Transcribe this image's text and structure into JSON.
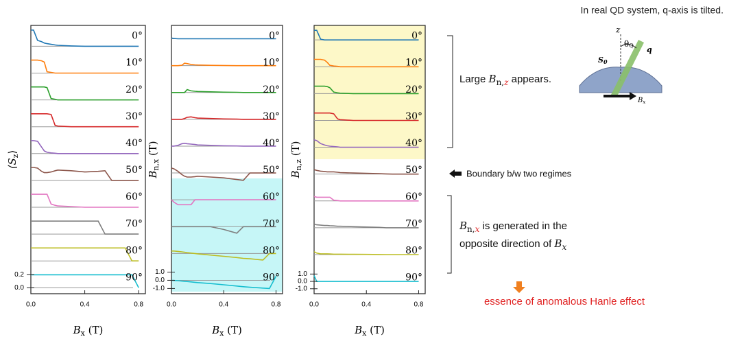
{
  "chart_data": [
    {
      "type": "line",
      "ylabel": [
        "⟨S",
        "z",
        "⟩"
      ],
      "xlabel": [
        "B",
        "x",
        " (T)"
      ],
      "x": [
        0,
        0.02,
        0.05,
        0.08,
        0.1,
        0.12,
        0.15,
        0.18,
        0.2,
        0.3,
        0.4,
        0.5,
        0.55,
        0.6,
        0.7,
        0.75,
        0.8
      ],
      "xlim": [
        0,
        0.85
      ],
      "xticks": [
        {
          "value": 0,
          "label": "0.0"
        },
        0.4,
        0.8
      ],
      "ylim": [
        -0.05,
        0.28
      ],
      "yticks": [
        {
          "value": 0,
          "label": "0.0"
        },
        0.2
      ],
      "series": [
        {
          "name": "0°",
          "color": "#1f77b4",
          "values": [
            0.25,
            0.25,
            0.09,
            0.07,
            0.05,
            0.04,
            0.03,
            0.02,
            0.015,
            0.005,
            0,
            0,
            0,
            0,
            0,
            0,
            0
          ]
        },
        {
          "name": "10°",
          "color": "#ff7f0e",
          "values": [
            0.2,
            0.2,
            0.2,
            0.19,
            0.17,
            0.02,
            0.01,
            0,
            0,
            0,
            0,
            0,
            0,
            0,
            0,
            0,
            0
          ]
        },
        {
          "name": "20°",
          "color": "#2ca02c",
          "values": [
            0.2,
            0.2,
            0.2,
            0.2,
            0.2,
            0.19,
            0.02,
            0.01,
            0,
            0,
            0,
            0,
            0,
            0,
            0,
            0,
            0
          ]
        },
        {
          "name": "30°",
          "color": "#d62728",
          "values": [
            0.2,
            0.2,
            0.2,
            0.2,
            0.2,
            0.2,
            0.19,
            0.02,
            0.01,
            0,
            0,
            0,
            0,
            0,
            0,
            0,
            0
          ]
        },
        {
          "name": "40°",
          "color": "#9467bd",
          "values": [
            0.2,
            0.2,
            0.19,
            0.1,
            0.04,
            0.02,
            0.01,
            0.005,
            0,
            0,
            0,
            0,
            0,
            0,
            0,
            0,
            0
          ]
        },
        {
          "name": "50°",
          "color": "#8c564b",
          "values": [
            0.2,
            0.2,
            0.19,
            0.14,
            0.12,
            0.12,
            0.13,
            0.15,
            0.16,
            0.15,
            0.13,
            0.14,
            0.15,
            0,
            0,
            0,
            0
          ]
        },
        {
          "name": "60°",
          "color": "#e377c2",
          "values": [
            0.2,
            0.2,
            0.2,
            0.2,
            0.2,
            0.2,
            0.05,
            0.03,
            0.02,
            0.01,
            0,
            0,
            0,
            0,
            0,
            0,
            0
          ]
        },
        {
          "name": "70°",
          "color": "#7f7f7f",
          "values": [
            0.2,
            0.2,
            0.2,
            0.2,
            0.2,
            0.2,
            0.2,
            0.2,
            0.2,
            0.2,
            0.2,
            0.2,
            0,
            0,
            0,
            0,
            0
          ]
        },
        {
          "name": "80°",
          "color": "#bcbd22",
          "values": [
            0.2,
            0.2,
            0.2,
            0.2,
            0.2,
            0.2,
            0.2,
            0.2,
            0.2,
            0.2,
            0.2,
            0.2,
            0.2,
            0.2,
            0.2,
            0,
            0
          ]
        },
        {
          "name": "90°",
          "color": "#17becf",
          "values": [
            0.2,
            0.2,
            0.2,
            0.2,
            0.2,
            0.2,
            0.2,
            0.2,
            0.2,
            0.2,
            0.2,
            0.2,
            0.2,
            0.2,
            0.2,
            0.2,
            0
          ]
        }
      ]
    },
    {
      "type": "line",
      "ylabel": [
        "B",
        "n,x",
        " (T)"
      ],
      "xlabel": [
        "B",
        "x",
        " (T)"
      ],
      "x": [
        0,
        0.02,
        0.05,
        0.08,
        0.1,
        0.12,
        0.15,
        0.18,
        0.2,
        0.3,
        0.4,
        0.5,
        0.55,
        0.6,
        0.7,
        0.75,
        0.8
      ],
      "xlim": [
        0,
        0.85
      ],
      "xticks": [
        {
          "value": 0,
          "label": "0.0"
        },
        0.4,
        0.8
      ],
      "ylim": [
        -1.3,
        1.3
      ],
      "yticks": [
        {
          "value": -1,
          "label": "-1.0"
        },
        {
          "value": 0,
          "label": "0.0"
        },
        {
          "value": 1,
          "label": "1.0"
        }
      ],
      "series": [
        {
          "name": "0°",
          "color": "#1f77b4",
          "values": [
            0.1,
            0.05,
            0,
            0,
            0,
            0,
            0,
            0,
            0,
            0,
            0,
            0,
            0,
            0,
            0,
            0,
            0
          ]
        },
        {
          "name": "10°",
          "color": "#ff7f0e",
          "values": [
            0,
            0,
            0,
            0.05,
            0.3,
            0.25,
            0.15,
            0.1,
            0.08,
            0.04,
            0.02,
            0,
            0,
            0,
            0,
            0,
            0
          ]
        },
        {
          "name": "20°",
          "color": "#2ca02c",
          "values": [
            0,
            0,
            0,
            0,
            0,
            0.35,
            0.2,
            0.15,
            0.12,
            0.08,
            0.04,
            0.02,
            0,
            0,
            0,
            0,
            0
          ]
        },
        {
          "name": "30°",
          "color": "#d62728",
          "values": [
            0,
            0,
            0,
            0,
            0.1,
            0.25,
            0.3,
            0.2,
            0.15,
            0.1,
            0.05,
            0.02,
            0,
            0,
            0,
            0,
            0
          ]
        },
        {
          "name": "40°",
          "color": "#9467bd",
          "values": [
            0,
            0,
            0.1,
            0.3,
            0.35,
            0.3,
            0.25,
            0.2,
            0.15,
            0.1,
            0.05,
            0.02,
            0,
            0,
            0,
            0,
            0
          ]
        },
        {
          "name": "50°",
          "color": "#8c564b",
          "values": [
            0.6,
            0.5,
            0.2,
            -0.2,
            -0.4,
            -0.5,
            -0.5,
            -0.45,
            -0.4,
            -0.5,
            -0.6,
            -0.8,
            -0.9,
            0,
            0,
            0,
            0
          ]
        },
        {
          "name": "60°",
          "color": "#e377c2",
          "values": [
            0,
            -0.3,
            -0.6,
            -0.6,
            -0.6,
            -0.6,
            -0.6,
            0,
            0,
            0,
            0,
            0,
            0,
            0,
            0,
            0,
            0
          ]
        },
        {
          "name": "70°",
          "color": "#7f7f7f",
          "values": [
            0,
            0,
            0,
            0,
            0,
            0,
            0,
            0,
            0,
            0,
            -0.35,
            -0.8,
            0,
            0,
            0,
            0,
            0
          ]
        },
        {
          "name": "80°",
          "color": "#bcbd22",
          "values": [
            0.3,
            0.3,
            0.25,
            0.2,
            0.15,
            0.1,
            0.05,
            0,
            -0.05,
            -0.2,
            -0.35,
            -0.5,
            -0.6,
            -0.65,
            -0.8,
            0,
            0
          ]
        },
        {
          "name": "90°",
          "color": "#17becf",
          "values": [
            0,
            -0.02,
            -0.05,
            -0.1,
            -0.12,
            -0.15,
            -0.2,
            -0.25,
            -0.28,
            -0.4,
            -0.55,
            -0.7,
            -0.78,
            -0.85,
            -0.95,
            -1.0,
            0.5
          ]
        }
      ]
    },
    {
      "type": "line",
      "ylabel": [
        "B",
        "n,z",
        " (T)"
      ],
      "xlabel": [
        "B",
        "x",
        " (T)"
      ],
      "x": [
        0,
        0.02,
        0.05,
        0.08,
        0.1,
        0.12,
        0.15,
        0.18,
        0.2,
        0.3,
        0.4,
        0.5,
        0.55,
        0.6,
        0.7,
        0.75,
        0.8
      ],
      "xlim": [
        0,
        0.85
      ],
      "xticks": [
        {
          "value": 0,
          "label": "0.0"
        },
        0.4,
        0.8
      ],
      "ylim": [
        -1.3,
        1.6
      ],
      "yticks": [
        {
          "value": -1,
          "label": "-1.0"
        },
        {
          "value": 0,
          "label": "0.0"
        },
        {
          "value": 1,
          "label": "1.0"
        }
      ],
      "series": [
        {
          "name": "0°",
          "color": "#1f77b4",
          "values": [
            1.3,
            1.3,
            0.1,
            0,
            0,
            0,
            0,
            0,
            0,
            0,
            0,
            0,
            0,
            0,
            0,
            0,
            0
          ]
        },
        {
          "name": "10°",
          "color": "#ff7f0e",
          "values": [
            1.0,
            1.0,
            1.0,
            0.9,
            0.6,
            0.2,
            0.1,
            0.05,
            0,
            0,
            0,
            0,
            0,
            0,
            0,
            0,
            0
          ]
        },
        {
          "name": "20°",
          "color": "#2ca02c",
          "values": [
            1.0,
            1.0,
            1.0,
            1.0,
            0.95,
            0.8,
            0.2,
            0.1,
            0.05,
            0,
            0,
            0,
            0,
            0,
            0,
            0,
            0
          ]
        },
        {
          "name": "30°",
          "color": "#d62728",
          "values": [
            1.0,
            1.0,
            1.0,
            1.0,
            1.0,
            1.0,
            0.9,
            0.2,
            0.1,
            0,
            0,
            0,
            0,
            0,
            0,
            0,
            0
          ]
        },
        {
          "name": "40°",
          "color": "#9467bd",
          "values": [
            1.0,
            0.9,
            0.5,
            0.3,
            0.2,
            0.15,
            0.1,
            0.05,
            0,
            0,
            0,
            0,
            0,
            0,
            0,
            0,
            0
          ]
        },
        {
          "name": "50°",
          "color": "#8c564b",
          "values": [
            0.6,
            0.5,
            0.4,
            0.35,
            0.3,
            0.3,
            0.3,
            0.25,
            0.2,
            0.15,
            0.1,
            0.05,
            0.02,
            0,
            0,
            0,
            0
          ]
        },
        {
          "name": "60°",
          "color": "#e377c2",
          "values": [
            0.6,
            0.5,
            0.5,
            0.5,
            0.5,
            0.5,
            0.1,
            0.05,
            0,
            0,
            0,
            0,
            0,
            0,
            0,
            0,
            0
          ]
        },
        {
          "name": "70°",
          "color": "#7f7f7f",
          "values": [
            0.5,
            0.4,
            0.35,
            0.3,
            0.3,
            0.28,
            0.25,
            0.2,
            0.2,
            0.15,
            0.1,
            0.05,
            0,
            0,
            0,
            0,
            0
          ]
        },
        {
          "name": "80°",
          "color": "#bcbd22",
          "values": [
            0.4,
            0.2,
            0.1,
            0.1,
            0.1,
            0.08,
            0.05,
            0.05,
            0.05,
            0.03,
            0.02,
            0.01,
            0,
            0,
            0,
            0,
            0
          ]
        },
        {
          "name": "90°",
          "color": "#17becf",
          "values": [
            0.8,
            0,
            0,
            0,
            0,
            0,
            0,
            0,
            0,
            0,
            0,
            0,
            0,
            0,
            0,
            0,
            0
          ]
        }
      ]
    }
  ],
  "annotations": {
    "top_note": "In real QD system, q-axis is tilted.",
    "large": [
      "Large ",
      "B",
      "n,",
      "z",
      " appears."
    ],
    "boundary": "Boundary b/w two regimes",
    "generated": [
      "B",
      "n,",
      "x",
      " is generated in the",
      "opposite direction of ",
      "B",
      "x"
    ],
    "essence": "essence of anomalous Hanle effect",
    "diagram": {
      "z": "z",
      "theta": "θ",
      "theta_sub": "Q",
      "q": "q",
      "s": "S",
      "s_sub": "0",
      "b": "B",
      "b_sub": "x"
    }
  }
}
